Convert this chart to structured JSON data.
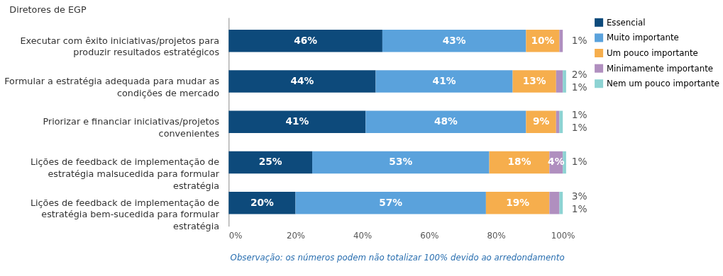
{
  "chart_data": {
    "type": "bar",
    "orientation": "horizontal",
    "stacked": true,
    "title": "Diretores de EGP",
    "categories": [
      "Executar com êxito iniciativas/projetos para produzir resultados estratégicos",
      "Formular a estratégia adequada para mudar as condições de mercado",
      "Priorizar e financiar iniciativas/projetos convenientes",
      "Lições de feedback de implementação de estratégia malsucedida para formular estratégia",
      "Lições de feedback de implementação de estratégia bem-sucedida para formular estratégia"
    ],
    "series": [
      {
        "name": "Essencial",
        "color": "#0d4a7b",
        "values": [
          46,
          44,
          41,
          25,
          20
        ],
        "value_labels": [
          "46%",
          "44%",
          "41%",
          "25%",
          "20%"
        ]
      },
      {
        "name": "Muito importante",
        "color": "#5aa2dc",
        "values": [
          43,
          41,
          48,
          53,
          57
        ],
        "value_labels": [
          "43%",
          "41%",
          "48%",
          "53%",
          "57%"
        ]
      },
      {
        "name": "Um pouco importante",
        "color": "#f6ae4d",
        "values": [
          10,
          13,
          9,
          18,
          19
        ],
        "value_labels": [
          "10%",
          "13%",
          "9%",
          "18%",
          "19%"
        ]
      },
      {
        "name": "Minimamente importante",
        "color": "#b08fbf",
        "values": [
          1,
          2,
          1,
          4,
          3
        ],
        "value_labels": [
          "1%",
          "2%",
          "1%",
          "4%",
          "3%"
        ]
      },
      {
        "name": "Nem um pouco importante",
        "color": "#8dd3d3",
        "values": [
          0,
          1,
          1,
          1,
          1
        ],
        "value_labels": [
          null,
          "1%",
          "1%",
          "1%",
          "1%"
        ]
      }
    ],
    "xlim": [
      0,
      101
    ],
    "xticks": [
      {
        "value": 0,
        "label": "0%"
      },
      {
        "value": 20,
        "label": "20%"
      },
      {
        "value": 40,
        "label": "40%"
      },
      {
        "value": 60,
        "label": "60%"
      },
      {
        "value": 80,
        "label": "80%"
      },
      {
        "value": 100,
        "label": "100%"
      }
    ],
    "grid": false,
    "legend": "right",
    "annotations": [
      "Observação: os números podem não totalizar 100% devido ao arredondamento"
    ]
  }
}
